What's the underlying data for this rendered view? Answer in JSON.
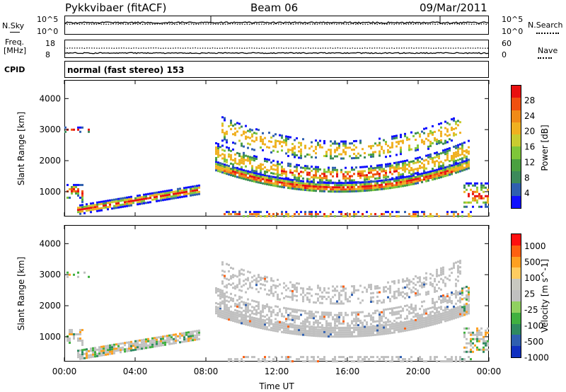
{
  "header": {
    "station": "Pykkvibaer (fitACF)",
    "beam": "Beam 06",
    "date": "09/Mar/2011"
  },
  "summary_panels": {
    "nsky_label": "N.Sky",
    "nsky_ticks": [
      "10^5",
      "10^0"
    ],
    "nsearch_label": "N.Search",
    "nsearch_ticks": [
      "10^5",
      "10^0"
    ],
    "freq_label_line1": "Freq.",
    "freq_label_line2": "[MHz]",
    "freq_ticks": [
      "18",
      "8"
    ],
    "nave_label": "Nave",
    "nave_ticks": [
      "60",
      "0"
    ],
    "cpid_label": "CPID",
    "cpid_text": "normal (fast stereo) 153"
  },
  "colors": {
    "power_scale": [
      "#1010ff",
      "#2f5fb0",
      "#3c8a5a",
      "#4aa040",
      "#7ec63a",
      "#c8cc30",
      "#f0b020",
      "#f08a18",
      "#f05010",
      "#e81010"
    ],
    "velocity_scale": [
      "#ff1010",
      "#ff6010",
      "#ffa020",
      "#ffcc60",
      "#c8c8c0",
      "#c0c0c0",
      "#90d060",
      "#40b040",
      "#2f8a60",
      "#2f5fb0",
      "#1030c0"
    ]
  },
  "chart_data": [
    {
      "type": "heatmap",
      "title": "",
      "ylabel": "Slant Range [km]",
      "xlabel": "",
      "x_ticks": [
        "00:00",
        "04:00",
        "08:00",
        "12:00",
        "16:00",
        "20:00",
        "00:00"
      ],
      "xlim_hours": [
        0,
        24
      ],
      "y_ticks": [
        1000,
        2000,
        3000,
        4000
      ],
      "ylim": [
        200,
        4600
      ],
      "colorbar_label": "Power [dB]",
      "colorbar_ticks": [
        "4",
        "8",
        "12",
        "16",
        "20",
        "24",
        "28"
      ]
    },
    {
      "type": "heatmap",
      "title": "",
      "ylabel": "Slant Range [km]",
      "xlabel": "Time UT",
      "x_ticks": [
        "00:00",
        "04:00",
        "08:00",
        "12:00",
        "16:00",
        "20:00",
        "00:00"
      ],
      "xlim_hours": [
        0,
        24
      ],
      "y_ticks": [
        1000,
        2000,
        3000,
        4000
      ],
      "ylim": [
        200,
        4600
      ],
      "colorbar_label": "Velocity [m s^-1]",
      "colorbar_ticks": [
        "1000",
        "500",
        "100",
        "25",
        "-25",
        "-100",
        "-500",
        "-1000"
      ]
    }
  ]
}
